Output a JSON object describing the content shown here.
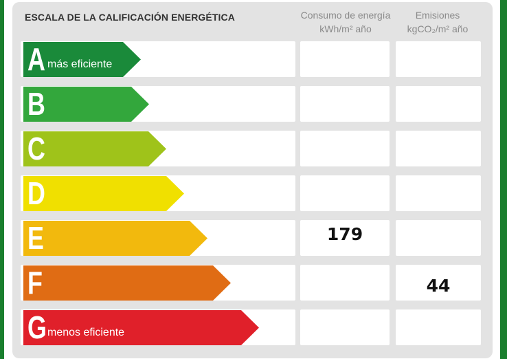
{
  "scale": {
    "title": "ESCALA DE LA CALIFICACIÓN ENERGÉTICA",
    "columns": [
      {
        "line1": "Consumo de energía",
        "line2": "kWh/m² año"
      },
      {
        "line1": "Emisiones",
        "line2": "kgCO₂/m² año"
      }
    ],
    "rows": [
      {
        "letter": "A",
        "label": "más eficiente",
        "color": "#1a8a3a",
        "consumo": "",
        "emisiones": ""
      },
      {
        "letter": "B",
        "label": "",
        "color": "#33a73c",
        "consumo": "",
        "emisiones": ""
      },
      {
        "letter": "C",
        "label": "",
        "color": "#9fc31a",
        "consumo": "",
        "emisiones": ""
      },
      {
        "letter": "D",
        "label": "",
        "color": "#f0e000",
        "consumo": "",
        "emisiones": ""
      },
      {
        "letter": "E",
        "label": "",
        "color": "#f2b90d",
        "consumo": "179",
        "emisiones": ""
      },
      {
        "letter": "F",
        "label": "",
        "color": "#e06c14",
        "consumo": "",
        "emisiones": "44"
      },
      {
        "letter": "G",
        "label": "menos eficiente",
        "color": "#e0202a",
        "consumo": "",
        "emisiones": ""
      }
    ]
  }
}
